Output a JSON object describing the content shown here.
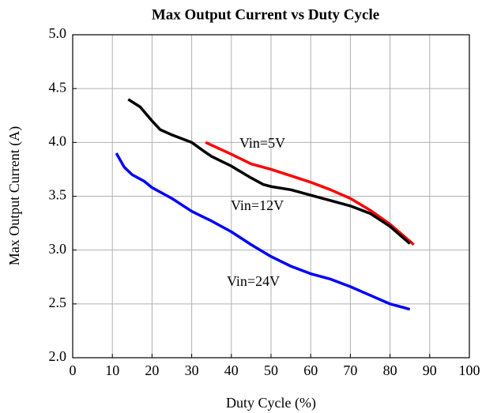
{
  "chart_data": {
    "type": "line",
    "title": "Max Output Current vs Duty Cycle",
    "x_label": "Duty Cycle (%)",
    "y_label": "Max Output Current (A)",
    "xlim": [
      0,
      100
    ],
    "xticks": [
      0,
      10,
      20,
      30,
      40,
      50,
      60,
      70,
      80,
      90,
      100
    ],
    "ylim": [
      2.0,
      5.0
    ],
    "yticks": [
      {
        "value": 2.0,
        "label": "2.0"
      },
      {
        "value": 2.5,
        "label": "2.5"
      },
      {
        "value": 3.0,
        "label": "3.0"
      },
      {
        "value": 3.5,
        "label": "3.5"
      },
      {
        "value": 4.0,
        "label": "4.0"
      },
      {
        "value": 4.5,
        "label": "4.5"
      },
      {
        "value": 5.0,
        "label": "5.0"
      }
    ],
    "grid": true,
    "series": [
      {
        "name": "Vin=5V",
        "color": "#ff0000",
        "x": [
          33.5,
          40,
          45,
          50,
          55,
          60,
          65,
          70,
          75,
          80,
          86
        ],
        "values": [
          4.0,
          3.89,
          3.8,
          3.75,
          3.69,
          3.63,
          3.56,
          3.48,
          3.37,
          3.24,
          3.05
        ]
      },
      {
        "name": "Vin=12V",
        "color": "#000000",
        "x": [
          14,
          17,
          20,
          22,
          25,
          30,
          33,
          35,
          40,
          45,
          48,
          50,
          55,
          60,
          65,
          70,
          75,
          80,
          85
        ],
        "values": [
          4.4,
          4.33,
          4.2,
          4.12,
          4.07,
          4.0,
          3.92,
          3.87,
          3.78,
          3.67,
          3.61,
          3.59,
          3.56,
          3.51,
          3.46,
          3.41,
          3.34,
          3.22,
          3.06
        ]
      },
      {
        "name": "Vin=24V",
        "color": "#0000ff",
        "x": [
          11,
          13,
          15,
          18,
          20,
          25,
          30,
          35,
          40,
          45,
          50,
          55,
          60,
          65,
          70,
          75,
          80,
          85
        ],
        "values": [
          3.9,
          3.77,
          3.7,
          3.64,
          3.58,
          3.48,
          3.36,
          3.27,
          3.17,
          3.05,
          2.94,
          2.85,
          2.78,
          2.73,
          2.66,
          2.58,
          2.5,
          2.45
        ]
      }
    ]
  }
}
